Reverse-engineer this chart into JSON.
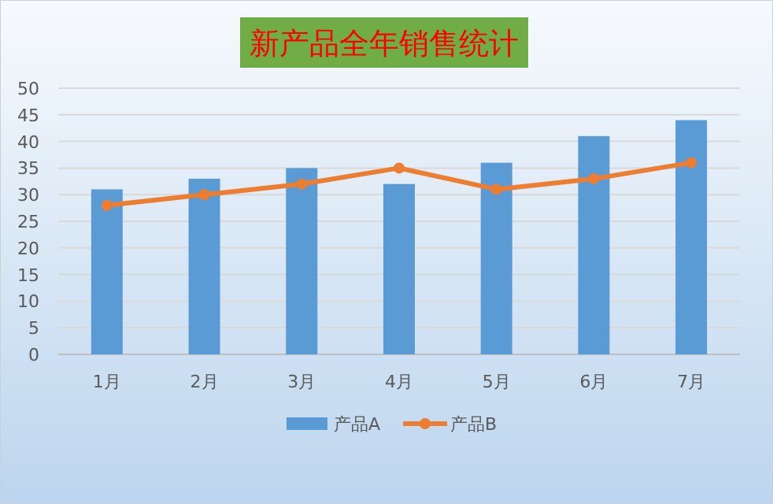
{
  "chart_data": {
    "type": "bar",
    "title": "新产品全年销售统计",
    "categories": [
      "1月",
      "2月",
      "3月",
      "4月",
      "5月",
      "6月",
      "7月"
    ],
    "series": [
      {
        "name": "产品A",
        "color": "#5b9bd5",
        "values": [
          31,
          33,
          35,
          32,
          36,
          41,
          44
        ]
      },
      {
        "name": "产品B",
        "type": "line",
        "color": "#ed7d31",
        "marker": "circle",
        "values": [
          28,
          30,
          32,
          35,
          31,
          33,
          36
        ]
      }
    ],
    "ylim": [
      0,
      50
    ],
    "yticks": [
      0,
      5,
      10,
      15,
      20,
      25,
      30,
      35,
      40,
      45,
      50
    ],
    "grid": "y",
    "legend": "bottom"
  }
}
